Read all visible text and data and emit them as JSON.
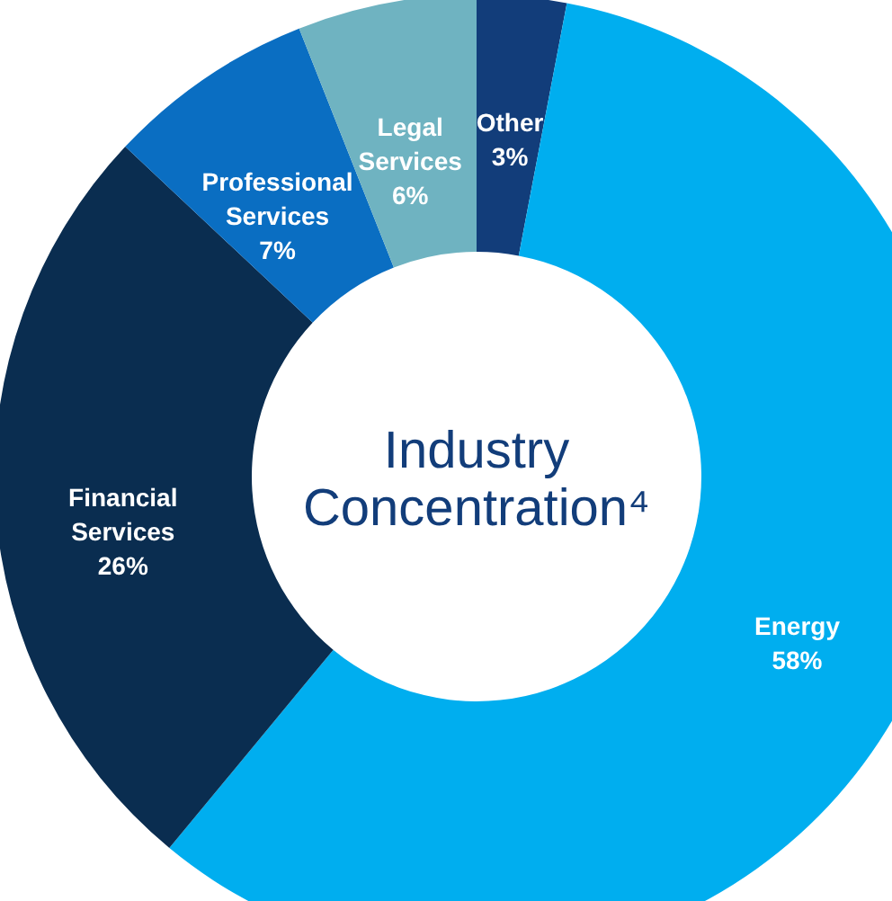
{
  "chart_data": {
    "type": "donut",
    "title": "Industry Concentration⁴",
    "categories": [
      "Other",
      "Energy",
      "Financial Services",
      "Professional Services",
      "Legal Services"
    ],
    "values": [
      3,
      58,
      26,
      7,
      6
    ],
    "value_labels": [
      "3%",
      "58%",
      "26%",
      "7%",
      "6%"
    ],
    "colors": [
      "#123d7a",
      "#00aeef",
      "#0a2d50",
      "#0a6ec2",
      "#6fb3c1"
    ]
  }
}
